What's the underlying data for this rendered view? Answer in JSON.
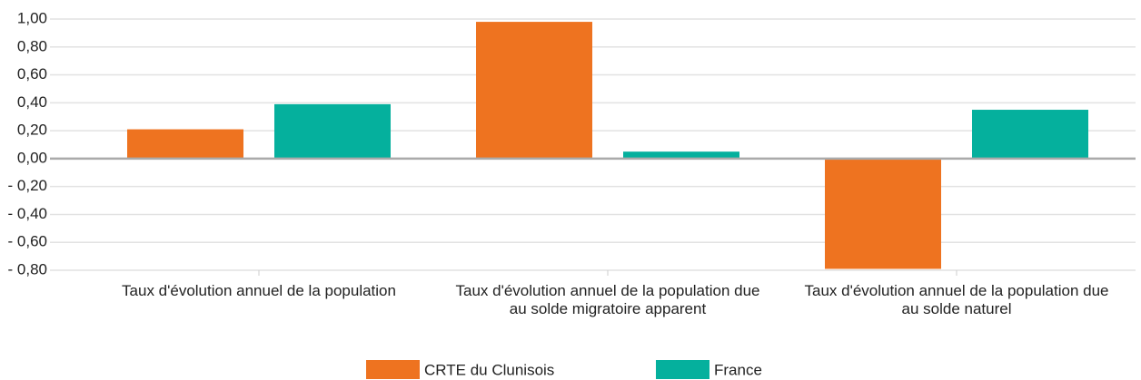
{
  "chart_data": {
    "type": "bar",
    "categories": [
      "Taux d'évolution annuel de la population",
      "Taux d'évolution annuel de la population due au solde migratoire apparent",
      "Taux d'évolution annuel de la population due au solde naturel"
    ],
    "series": [
      {
        "name": "CRTE du Clunisois",
        "color": "#ee7320",
        "values": [
          0.21,
          0.98,
          -0.79
        ]
      },
      {
        "name": "France",
        "color": "#05b09d",
        "values": [
          0.39,
          0.05,
          0.35
        ]
      }
    ],
    "ylim": [
      -0.8,
      1.0
    ],
    "yticks": [
      {
        "value": 1.0,
        "label": "1,00"
      },
      {
        "value": 0.8,
        "label": "0,80"
      },
      {
        "value": 0.6,
        "label": "0,60"
      },
      {
        "value": 0.4,
        "label": "0,40"
      },
      {
        "value": 0.2,
        "label": "0,20"
      },
      {
        "value": 0.0,
        "label": "0,00"
      },
      {
        "value": -0.2,
        "label": "- 0,20"
      },
      {
        "value": -0.4,
        "label": "- 0,40"
      },
      {
        "value": -0.6,
        "label": "- 0,60"
      },
      {
        "value": -0.8,
        "label": "- 0,80"
      }
    ],
    "grid": true,
    "legend": "bottom"
  }
}
